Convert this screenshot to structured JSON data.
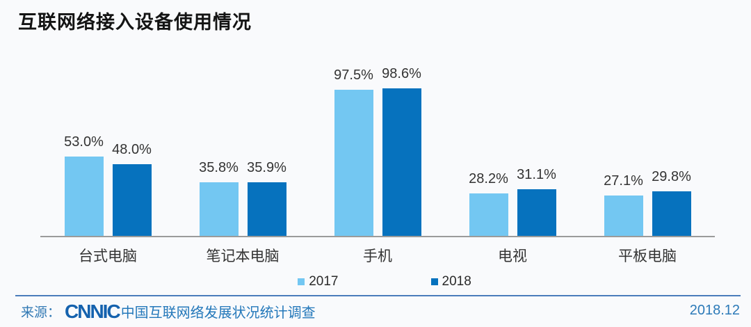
{
  "title": "互联网络接入设备使用情况",
  "chart_data": {
    "type": "bar",
    "categories": [
      "台式电脑",
      "笔记本电脑",
      "手机",
      "电视",
      "平板电脑"
    ],
    "series": [
      {
        "name": "2017",
        "color": "#73c7f2",
        "values": [
          53.0,
          35.8,
          97.5,
          28.2,
          27.1
        ]
      },
      {
        "name": "2018",
        "color": "#0672be",
        "values": [
          48.0,
          35.9,
          98.6,
          31.1,
          29.8
        ]
      }
    ],
    "data_labels": {
      "2017": [
        "53.0%",
        "35.8%",
        "97.5%",
        "28.2%",
        "27.1%"
      ],
      "2018": [
        "48.0%",
        "35.9%",
        "98.6%",
        "31.1%",
        "29.8%"
      ]
    },
    "value_suffix": "%",
    "ylim": [
      0,
      105
    ],
    "grid": false,
    "y_axis_visible": false,
    "legend_position": "bottom",
    "axis_line_color": "#9b9b9b"
  },
  "legend": {
    "items": [
      {
        "label": "2017",
        "color": "#73c7f2"
      },
      {
        "label": "2018",
        "color": "#0672be"
      }
    ]
  },
  "footer": {
    "source_prefix": "来源：",
    "logo": "CNNIC",
    "source_text": "中国互联网络发展状况统计调查",
    "date": "2018.12"
  }
}
